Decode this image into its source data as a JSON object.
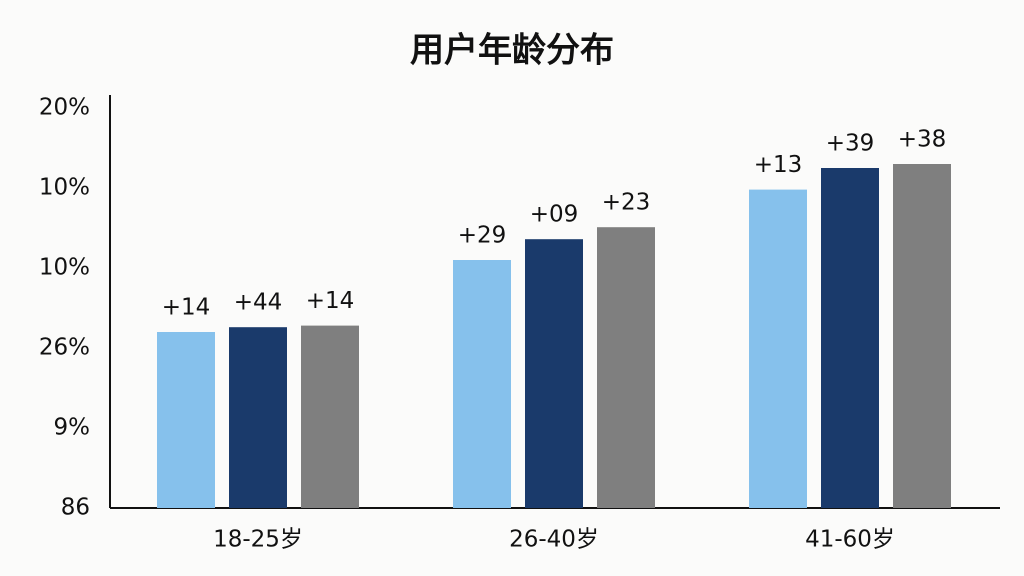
{
  "chart_data": {
    "type": "bar",
    "title": "用户年龄分布",
    "categories": [
      "18-25岁",
      "26-40岁",
      "41-60岁"
    ],
    "series": [
      {
        "color": "#86c1ec",
        "values": [
          2.2,
          3.1,
          3.98
        ],
        "value_labels": [
          "+14",
          "+29",
          "+13"
        ]
      },
      {
        "color": "#1a3a6b",
        "values": [
          2.26,
          3.36,
          4.25
        ],
        "value_labels": [
          "+44",
          "+09",
          "+39"
        ]
      },
      {
        "color": "#7f7f7f",
        "values": [
          2.28,
          3.51,
          4.3
        ],
        "value_labels": [
          "+14",
          "+23",
          "+38"
        ]
      }
    ],
    "ylim": [
      0,
      5
    ],
    "yticks": [
      {
        "value": 0,
        "label": "86"
      },
      {
        "value": 1,
        "label": "9%"
      },
      {
        "value": 2,
        "label": "26%"
      },
      {
        "value": 3,
        "label": "10%"
      },
      {
        "value": 4,
        "label": "10%"
      },
      {
        "value": 5,
        "label": "20%"
      }
    ],
    "grid": false
  }
}
